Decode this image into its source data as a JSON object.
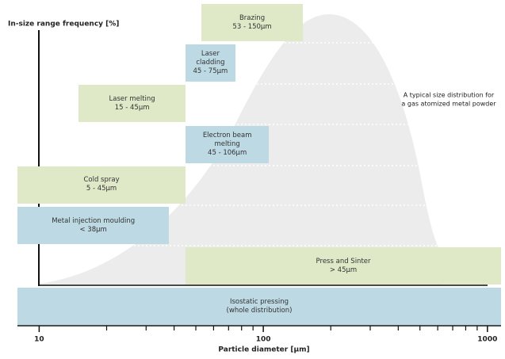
{
  "chart_data": {
    "type": "range",
    "title": "In-size range frequency [%]",
    "x_label": "Particle diameter [µm]",
    "annotation": [
      "A typical size distribution for",
      "a gas atomized metal powder"
    ],
    "log_x": true,
    "xlim": [
      8,
      1150
    ],
    "xticks": [
      10,
      100,
      1000
    ],
    "xminorticks": [
      20,
      30,
      40,
      50,
      60,
      70,
      80,
      90,
      200,
      300,
      400,
      500,
      600,
      700,
      800,
      900
    ],
    "ranges": [
      {
        "name": "Brazing",
        "range_label": "53 - 150µm",
        "range": [
          53,
          150
        ],
        "color": "#dfe8c7"
      },
      {
        "name": "Laser cladding",
        "range_label": "45 - 75µm",
        "range": [
          45,
          75
        ],
        "color": "#bdd9e3"
      },
      {
        "name": "Laser melting",
        "range_label": "15 - 45µm",
        "range": [
          15,
          45
        ],
        "color": "#dfe8c7"
      },
      {
        "name": "Electron beam melting",
        "range_label": "45 - 106µm",
        "range": [
          45,
          106
        ],
        "color": "#bdd9e3"
      },
      {
        "name": "Cold spray",
        "range_label": "5 - 45µm",
        "range": [
          5,
          45
        ],
        "color": "#dfe8c7"
      },
      {
        "name": "Metal injection moulding",
        "range_label": "< 38µm",
        "range": [
          null,
          38
        ],
        "color": "#bdd9e3"
      },
      {
        "name": "Press and Sinter",
        "range_label": "> 45µm",
        "range": [
          45,
          null
        ],
        "color": "#dfe8c7"
      },
      {
        "name": "Isostatic pressing",
        "range_label": "(whole distribution)",
        "range": [
          null,
          null
        ],
        "color": "#bdd9e3"
      }
    ]
  }
}
